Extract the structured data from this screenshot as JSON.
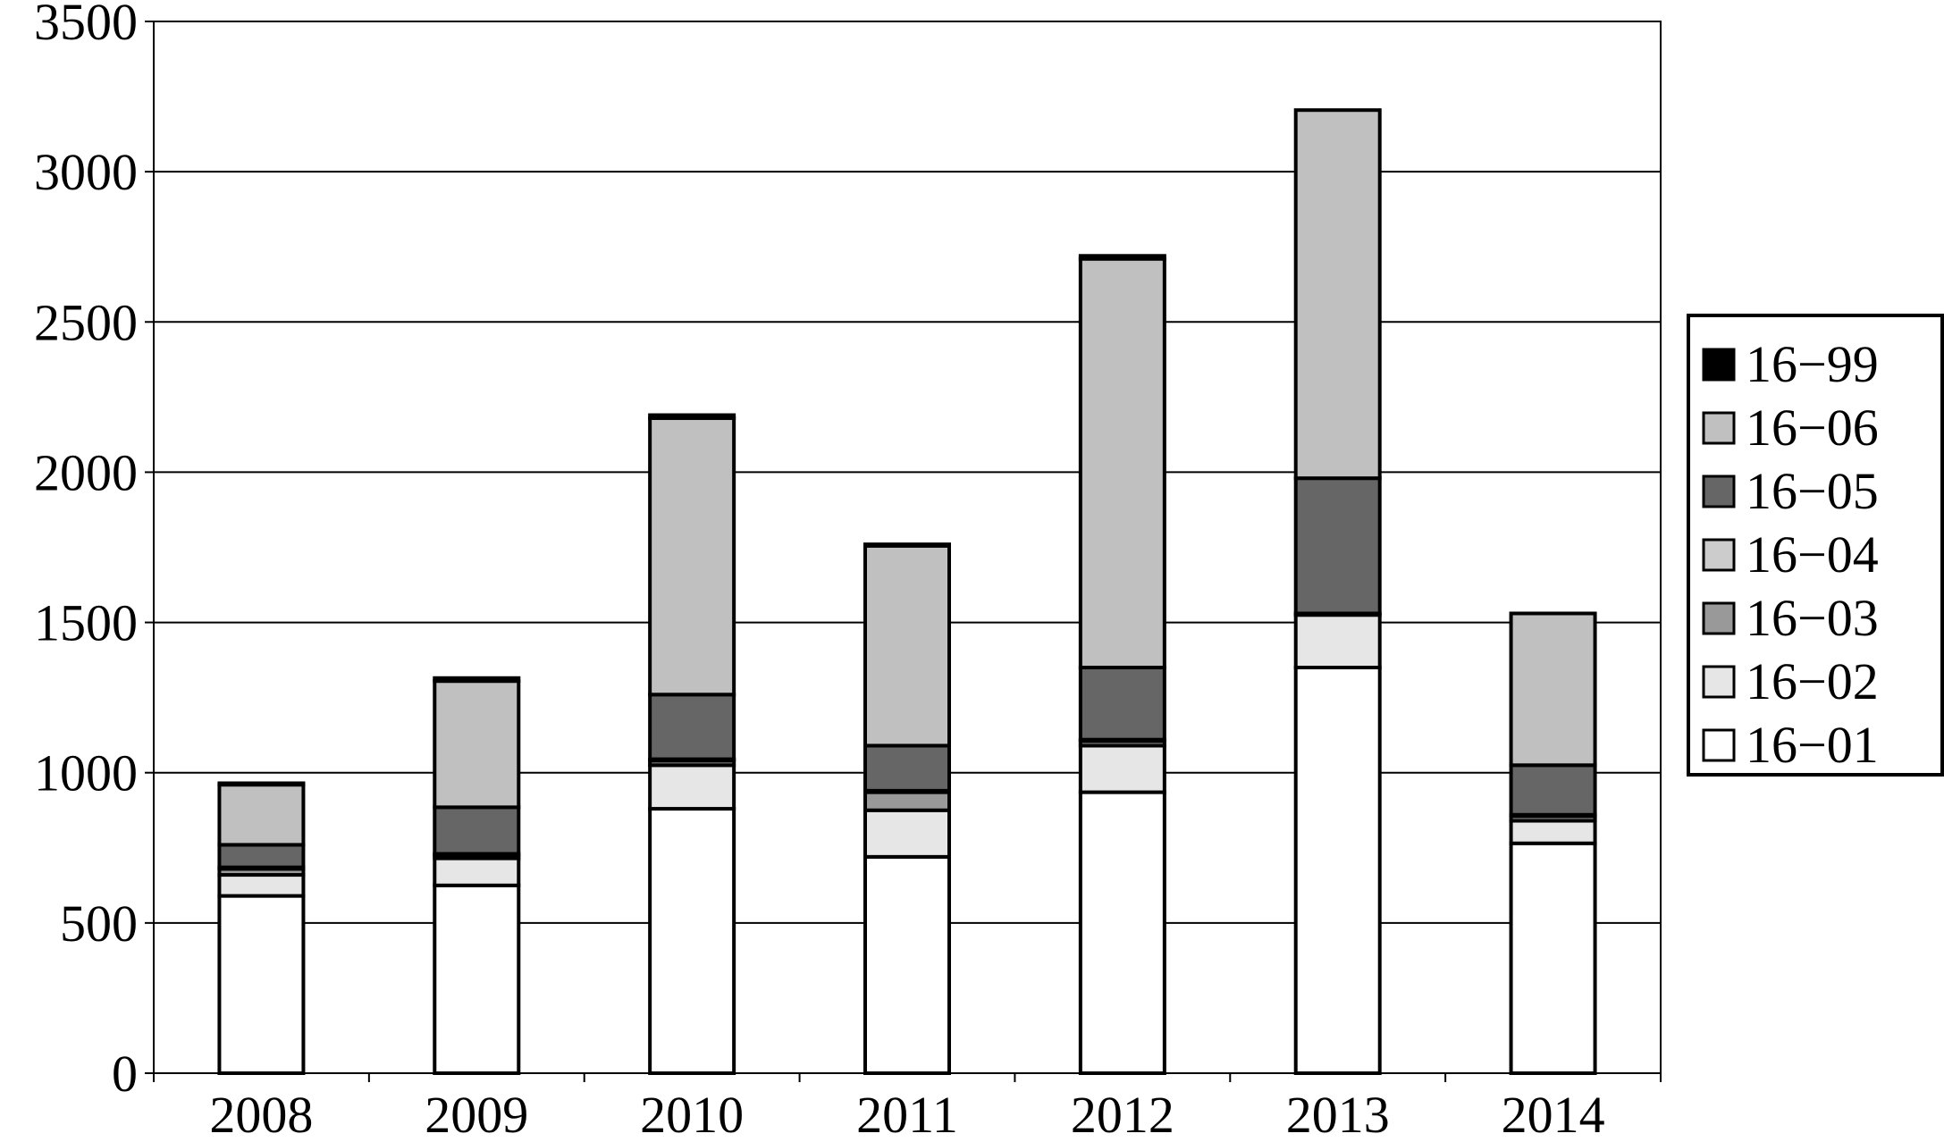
{
  "chart_data": {
    "type": "bar",
    "stacked": true,
    "title": "",
    "xlabel": "",
    "ylabel": "",
    "categories": [
      "2008",
      "2009",
      "2010",
      "2011",
      "2012",
      "2013",
      "2014"
    ],
    "ylim": [
      0,
      3500
    ],
    "yticks": [
      "0",
      "500",
      "1000",
      "1500",
      "2000",
      "2500",
      "3000",
      "3500"
    ],
    "grid": true,
    "legend_position": "right",
    "series": [
      {
        "name": "16−01",
        "color": "#ffffff",
        "values": [
          590,
          625,
          880,
          720,
          935,
          1350,
          765
        ]
      },
      {
        "name": "16−02",
        "color": "#e6e6e6",
        "values": [
          70,
          90,
          145,
          155,
          155,
          175,
          75
        ]
      },
      {
        "name": "16−03",
        "color": "#999999",
        "values": [
          20,
          10,
          15,
          60,
          15,
          5,
          15
        ]
      },
      {
        "name": "16−04",
        "color": "#cccccc",
        "values": [
          5,
          5,
          5,
          5,
          5,
          0,
          5
        ]
      },
      {
        "name": "16−05",
        "color": "#666666",
        "values": [
          75,
          155,
          215,
          150,
          240,
          450,
          165
        ]
      },
      {
        "name": "16−06",
        "color": "#c0c0c0",
        "values": [
          200,
          420,
          920,
          665,
          1360,
          1225,
          505
        ]
      },
      {
        "name": "16−99",
        "color": "#000000",
        "values": [
          5,
          10,
          10,
          5,
          10,
          0,
          0
        ]
      }
    ]
  }
}
